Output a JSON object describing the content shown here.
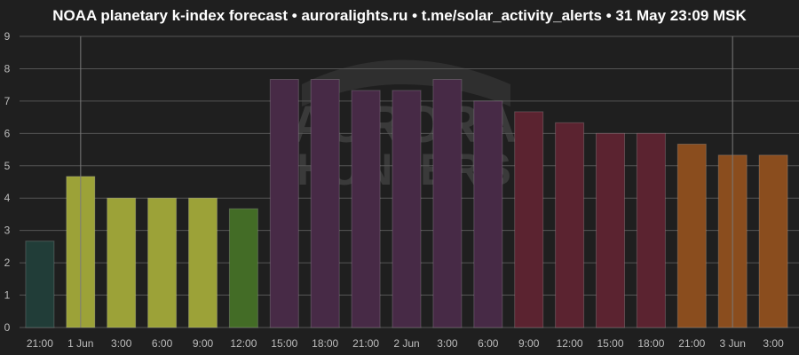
{
  "chart_data": {
    "type": "bar",
    "title": "NOAA planetary k-index forecast • auroralights.ru • t.me/solar_activity_alerts • 31 May 23:09 MSK",
    "categories": [
      "21:00",
      "1 Jun",
      "3:00",
      "6:00",
      "9:00",
      "12:00",
      "15:00",
      "18:00",
      "21:00",
      "2 Jun",
      "3:00",
      "6:00",
      "9:00",
      "12:00",
      "15:00",
      "18:00",
      "21:00",
      "3 Jun",
      "3:00"
    ],
    "values": [
      2.67,
      4.67,
      4.0,
      4.0,
      4.0,
      3.67,
      7.67,
      7.67,
      7.33,
      7.33,
      7.67,
      7.0,
      6.67,
      6.33,
      6.0,
      6.0,
      5.67,
      5.33,
      5.33
    ],
    "bar_colors": [
      "#213d38",
      "#9ca238",
      "#9ca238",
      "#9ca238",
      "#9ca238",
      "#436c26",
      "#472a46",
      "#472a46",
      "#472a46",
      "#472a46",
      "#472a46",
      "#472a46",
      "#5b2330",
      "#5b2330",
      "#5b2330",
      "#5b2330",
      "#8a4d1e",
      "#8a4d1e",
      "#8a4d1e"
    ],
    "day_boundaries": [
      "1 Jun",
      "3 Jun"
    ],
    "yticks": [
      0,
      1,
      2,
      3,
      4,
      5,
      6,
      7,
      8,
      9
    ],
    "ylim": [
      0,
      9
    ],
    "xlabel": "",
    "ylabel": "",
    "grid": true,
    "legend": "none",
    "watermark": [
      "AURORA",
      "HUNTERS"
    ]
  }
}
